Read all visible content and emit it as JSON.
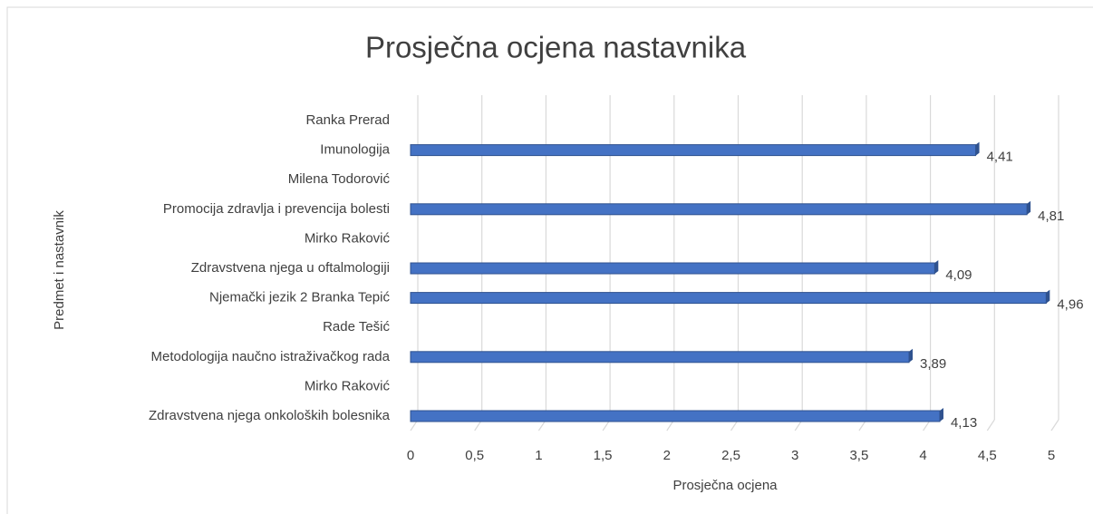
{
  "chart_data": {
    "type": "bar",
    "orientation": "horizontal",
    "title": "Prosječna ocjena nastavnika",
    "x_label": "Prosječna ocjena",
    "y_label": "Predmet i nastavnik",
    "categories": [
      "Ranka Prerad",
      "Imunologija",
      "Milena Todorović",
      "Promocija zdravlja i prevencija bolesti",
      "Mirko Raković",
      "Zdravstvena njega u oftalmologiji",
      "Njemački jezik 2 Branka Tepić",
      "Rade Tešić",
      "Metodologija naučno istraživačkog rada",
      "Mirko Raković",
      "Zdravstvena njega onkoloških bolesnika"
    ],
    "values": [
      null,
      4.41,
      null,
      4.81,
      null,
      4.09,
      4.96,
      null,
      3.89,
      null,
      4.13
    ],
    "value_labels": [
      null,
      "4,41",
      null,
      "4,81",
      null,
      "4,09",
      "4,96",
      null,
      "3,89",
      null,
      "4,13"
    ],
    "color": "#4472c4",
    "xlim": [
      0,
      5
    ],
    "xticks": [
      0,
      {
        "value": 0.5,
        "label": "0,5"
      },
      1,
      {
        "value": 1.5,
        "label": "1,5"
      },
      2,
      {
        "value": 2.5,
        "label": "2,5"
      },
      3,
      {
        "value": 3.5,
        "label": "3,5"
      },
      4,
      {
        "value": 4.5,
        "label": "4,5"
      },
      5
    ],
    "grid": true
  }
}
